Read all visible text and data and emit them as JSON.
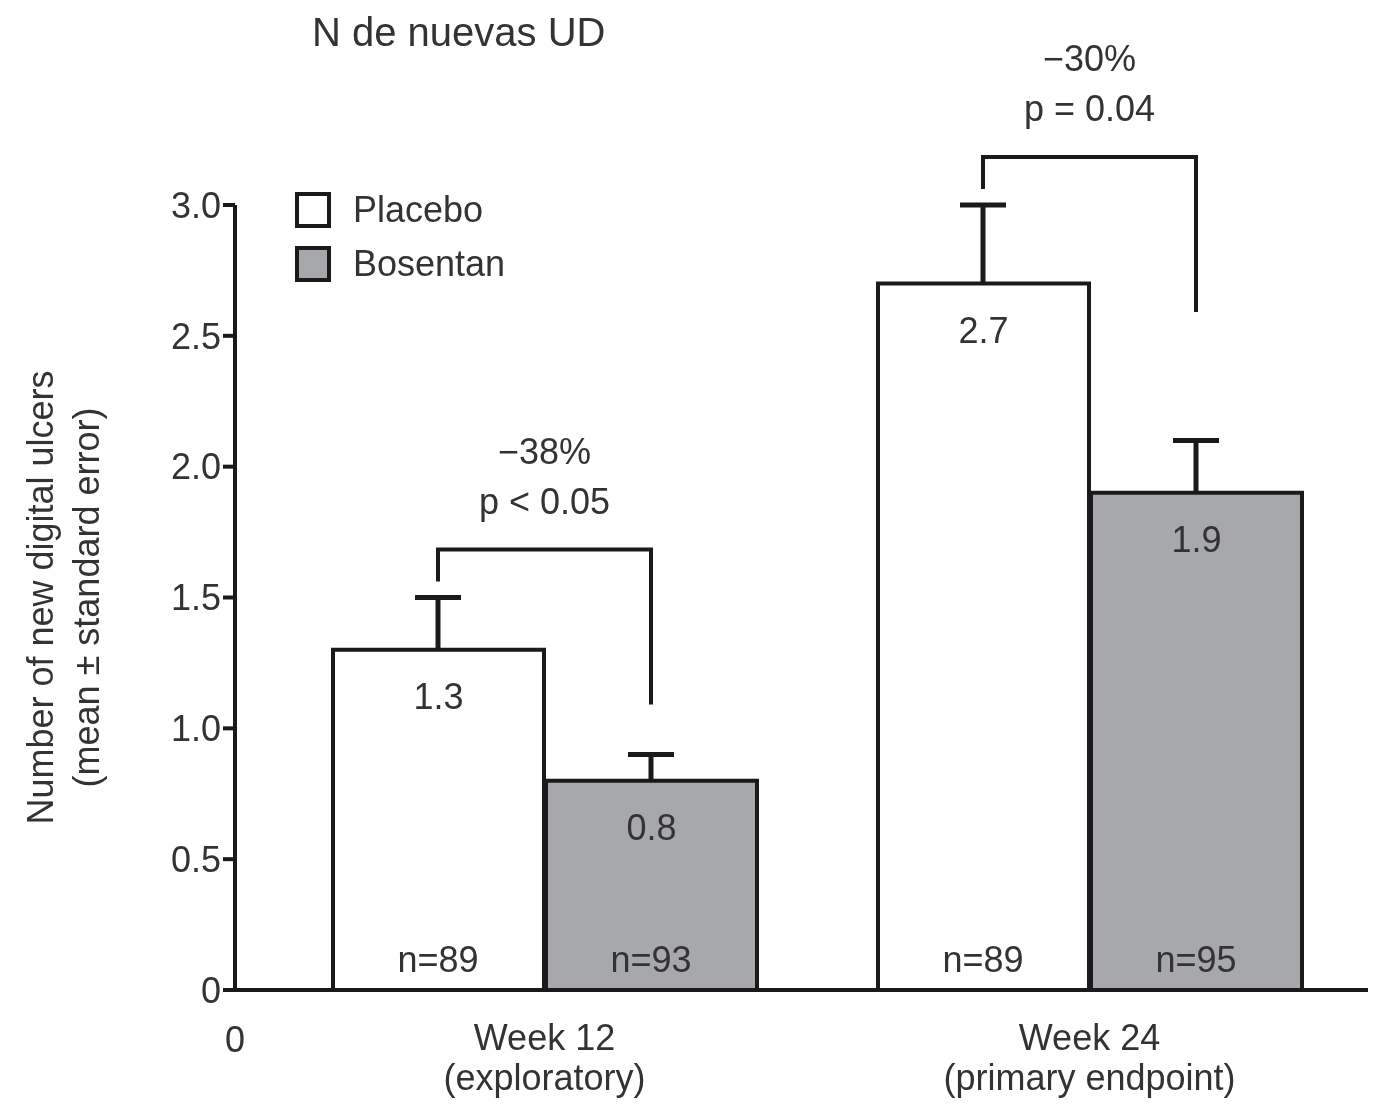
{
  "chart_data": {
    "type": "bar",
    "title": "N de nuevas UD",
    "ylabel": "Number of new digital ulcers\n(mean ± standard error)",
    "categories": [
      "Week 12\n(exploratory)",
      "Week 24\n(primary endpoint)"
    ],
    "series": [
      {
        "name": "Placebo",
        "color": "#ffffff",
        "values": [
          1.3,
          2.7
        ],
        "errors": [
          [
            1.3,
            1.5
          ],
          [
            2.7,
            3.0
          ]
        ]
      },
      {
        "name": "Bosentan",
        "color": "#a7a8ab",
        "values": [
          0.8,
          1.9
        ],
        "errors": [
          [
            0.8,
            0.9
          ],
          [
            1.9,
            2.1
          ]
        ]
      }
    ],
    "ylim": [
      0,
      3
    ],
    "yticks": [
      {
        "value": 0,
        "label": "0"
      },
      0.5,
      {
        "value": 1,
        "label": "1.0"
      },
      1.5,
      {
        "value": 2,
        "label": "2.0"
      },
      2.5,
      {
        "value": 3,
        "label": "3.0"
      }
    ],
    "data_labels": true,
    "legend": "top left",
    "grid": false,
    "annotations": [
      "−38%\np < 0.05",
      "−30%\np = 0.04",
      "0",
      {
        "text": "n=89",
        "x": "Week 12\n(exploratory)",
        "y": 0
      },
      {
        "text": "n=93",
        "x": "Week 12\n(exploratory)",
        "y": 0
      },
      {
        "text": "n=89",
        "x": "Week 24\n(primary endpoint)",
        "y": 0
      },
      {
        "text": "n=95",
        "x": "Week 24\n(primary endpoint)",
        "y": 0
      }
    ]
  }
}
